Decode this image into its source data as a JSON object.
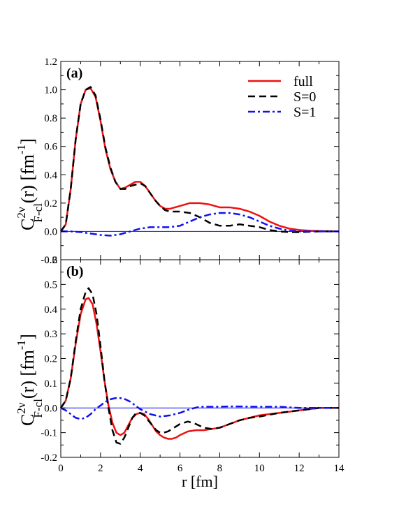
{
  "chart_data": [
    {
      "type": "line",
      "panel_label": "(a)",
      "ylabel": {
        "main": "C",
        "sup": "2ν",
        "sub": "F-cl",
        "rest": "(r) [fm",
        "unit_sup": "-1",
        "close": "]"
      },
      "xlim": [
        0,
        14
      ],
      "ylim": [
        -0.2,
        1.2
      ],
      "yticks": [
        "-0.2",
        "0.0",
        "0.2",
        "0.4",
        "0.6",
        "0.8",
        "1.0",
        "1.2"
      ],
      "legend_position": "top-right",
      "series": [
        {
          "name": "full",
          "color": "#ee1111",
          "style": "solid",
          "x": [
            0,
            0.25,
            0.5,
            0.75,
            1.0,
            1.25,
            1.5,
            1.75,
            2.0,
            2.25,
            2.5,
            2.75,
            3.0,
            3.25,
            3.5,
            3.75,
            4.0,
            4.25,
            4.5,
            4.75,
            5.0,
            5.25,
            5.5,
            5.75,
            6.0,
            6.25,
            6.5,
            6.75,
            7.0,
            7.5,
            8.0,
            8.5,
            9.0,
            9.5,
            10.0,
            10.5,
            11.0,
            11.5,
            12.0,
            12.5,
            13.0,
            14.0
          ],
          "y": [
            0,
            0.05,
            0.3,
            0.65,
            0.9,
            1.0,
            1.01,
            0.95,
            0.78,
            0.58,
            0.44,
            0.35,
            0.3,
            0.31,
            0.33,
            0.35,
            0.35,
            0.32,
            0.27,
            0.22,
            0.18,
            0.16,
            0.16,
            0.17,
            0.18,
            0.19,
            0.2,
            0.2,
            0.2,
            0.19,
            0.17,
            0.17,
            0.16,
            0.14,
            0.11,
            0.07,
            0.04,
            0.02,
            0.01,
            0.005,
            0.003,
            0
          ]
        },
        {
          "name": "S=0",
          "color": "#000000",
          "style": "dashed",
          "x": [
            0,
            0.25,
            0.5,
            0.75,
            1.0,
            1.25,
            1.5,
            1.75,
            2.0,
            2.25,
            2.5,
            2.75,
            3.0,
            3.25,
            3.5,
            3.75,
            4.0,
            4.25,
            4.5,
            4.75,
            5.0,
            5.25,
            5.5,
            6.0,
            6.5,
            7.0,
            7.5,
            8.0,
            8.5,
            9.0,
            9.5,
            10.0,
            10.5,
            11.0,
            11.5,
            12.0,
            13.0,
            14.0
          ],
          "y": [
            0,
            0.05,
            0.3,
            0.65,
            0.9,
            1.0,
            1.02,
            0.96,
            0.79,
            0.59,
            0.45,
            0.35,
            0.3,
            0.3,
            0.32,
            0.33,
            0.34,
            0.32,
            0.27,
            0.22,
            0.18,
            0.15,
            0.14,
            0.14,
            0.13,
            0.1,
            0.06,
            0.04,
            0.04,
            0.05,
            0.04,
            0.03,
            0.01,
            0.0,
            -0.005,
            -0.005,
            0.0,
            0
          ]
        },
        {
          "name": "S=1",
          "color": "#1111ee",
          "style": "dash-dot",
          "x": [
            0,
            0.5,
            1.0,
            1.5,
            2.0,
            2.5,
            3.0,
            3.5,
            4.0,
            4.5,
            5.0,
            5.5,
            6.0,
            6.5,
            7.0,
            7.5,
            8.0,
            8.5,
            9.0,
            9.5,
            10.0,
            10.5,
            11.0,
            11.5,
            12.0,
            13.0,
            14.0
          ],
          "y": [
            0,
            0.0,
            -0.005,
            -0.015,
            -0.025,
            -0.03,
            -0.02,
            0.0,
            0.02,
            0.03,
            0.03,
            0.03,
            0.04,
            0.07,
            0.1,
            0.12,
            0.13,
            0.13,
            0.12,
            0.1,
            0.07,
            0.04,
            0.02,
            0.005,
            0.0,
            0.0,
            0
          ]
        }
      ],
      "reference_line": {
        "y": 0,
        "color": "#1111ee"
      }
    },
    {
      "type": "line",
      "panel_label": "(b)",
      "ylabel": {
        "main": "C",
        "sup": "2ν",
        "sub": "F-cl",
        "rest": "(r) [fm",
        "unit_sup": "-1",
        "close": "]"
      },
      "xlabel": "r [fm]",
      "xlim": [
        0,
        14
      ],
      "ylim": [
        -0.2,
        0.6
      ],
      "xticks": [
        "0",
        "2",
        "4",
        "6",
        "8",
        "10",
        "12",
        "14"
      ],
      "yticks": [
        "-0.2",
        "-0.1",
        "0.0",
        "0.1",
        "0.2",
        "0.3",
        "0.4",
        "0.5",
        "0.6"
      ],
      "series": [
        {
          "name": "full",
          "color": "#ee1111",
          "style": "solid",
          "x": [
            0,
            0.25,
            0.5,
            0.75,
            1.0,
            1.25,
            1.4,
            1.6,
            1.8,
            2.0,
            2.2,
            2.4,
            2.6,
            2.8,
            3.0,
            3.2,
            3.4,
            3.6,
            3.8,
            4.0,
            4.2,
            4.4,
            4.6,
            4.8,
            5.0,
            5.2,
            5.4,
            5.6,
            5.8,
            6.0,
            6.4,
            6.8,
            7.2,
            7.6,
            8.0,
            8.5,
            9.0,
            9.5,
            10.0,
            11.0,
            12.0,
            13.0,
            14.0
          ],
          "y": [
            0,
            0.03,
            0.12,
            0.26,
            0.38,
            0.44,
            0.445,
            0.42,
            0.34,
            0.23,
            0.11,
            0.01,
            -0.06,
            -0.1,
            -0.11,
            -0.1,
            -0.07,
            -0.04,
            -0.025,
            -0.02,
            -0.025,
            -0.045,
            -0.07,
            -0.095,
            -0.11,
            -0.12,
            -0.125,
            -0.125,
            -0.12,
            -0.11,
            -0.095,
            -0.09,
            -0.09,
            -0.085,
            -0.08,
            -0.065,
            -0.05,
            -0.04,
            -0.03,
            -0.02,
            -0.01,
            0.0,
            0
          ]
        },
        {
          "name": "S=0",
          "color": "#000000",
          "style": "dashed",
          "x": [
            0,
            0.25,
            0.5,
            0.75,
            1.0,
            1.25,
            1.4,
            1.6,
            1.8,
            2.0,
            2.2,
            2.4,
            2.6,
            2.8,
            3.0,
            3.2,
            3.4,
            3.6,
            3.8,
            4.0,
            4.2,
            4.4,
            4.6,
            4.8,
            5.0,
            5.2,
            5.4,
            5.6,
            5.8,
            6.0,
            6.4,
            6.8,
            7.2,
            7.6,
            8.0,
            8.5,
            9.0,
            9.5,
            10.0,
            11.0,
            12.0,
            13.0,
            14.0
          ],
          "y": [
            0,
            0.03,
            0.12,
            0.27,
            0.4,
            0.47,
            0.485,
            0.46,
            0.38,
            0.25,
            0.11,
            0.0,
            -0.09,
            -0.14,
            -0.145,
            -0.12,
            -0.08,
            -0.04,
            -0.02,
            -0.02,
            -0.03,
            -0.05,
            -0.07,
            -0.09,
            -0.1,
            -0.1,
            -0.095,
            -0.085,
            -0.075,
            -0.065,
            -0.055,
            -0.065,
            -0.08,
            -0.085,
            -0.08,
            -0.065,
            -0.05,
            -0.04,
            -0.035,
            -0.02,
            -0.01,
            0.0,
            0
          ]
        },
        {
          "name": "S=1",
          "color": "#1111ee",
          "style": "dash-dot",
          "x": [
            0,
            0.25,
            0.5,
            0.75,
            1.0,
            1.25,
            1.5,
            1.75,
            2.0,
            2.25,
            2.5,
            2.75,
            3.0,
            3.25,
            3.5,
            3.75,
            4.0,
            4.25,
            4.5,
            4.75,
            5.0,
            5.5,
            6.0,
            6.5,
            7.0,
            7.5,
            8.0,
            8.5,
            9.0,
            10.0,
            11.0,
            12.0,
            13.0,
            14.0
          ],
          "y": [
            0,
            -0.01,
            -0.025,
            -0.04,
            -0.045,
            -0.04,
            -0.025,
            -0.005,
            0.01,
            0.025,
            0.035,
            0.04,
            0.04,
            0.035,
            0.025,
            0.01,
            -0.005,
            -0.015,
            -0.025,
            -0.03,
            -0.035,
            -0.03,
            -0.02,
            -0.005,
            0.005,
            0.005,
            0.005,
            0.006,
            0.006,
            0.005,
            0.005,
            0.0,
            0.0,
            0
          ]
        }
      ],
      "reference_line": {
        "y": 0,
        "color": "#1111ee"
      }
    }
  ]
}
